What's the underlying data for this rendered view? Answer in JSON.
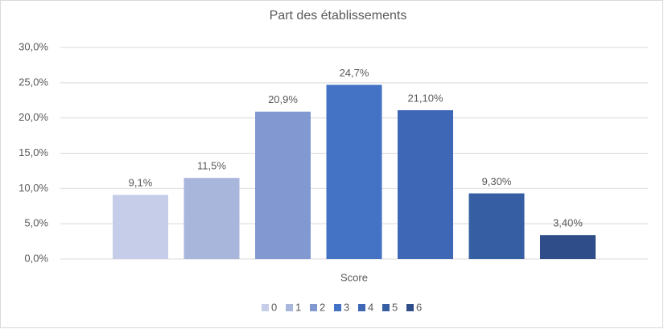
{
  "chart_data": {
    "type": "bar",
    "title": "Part des établissements",
    "categories": [
      "Score"
    ],
    "series": [
      {
        "name": "0",
        "color": "#c5cde8",
        "values": [
          9.1
        ],
        "value_labels": [
          "9,1%"
        ]
      },
      {
        "name": "1",
        "color": "#a8b6dc",
        "values": [
          11.5
        ],
        "value_labels": [
          "11,5%"
        ]
      },
      {
        "name": "2",
        "color": "#8199d0",
        "values": [
          20.9
        ],
        "value_labels": [
          "20,9%"
        ]
      },
      {
        "name": "3",
        "color": "#4472c4",
        "values": [
          24.7
        ],
        "value_labels": [
          "24,7%"
        ]
      },
      {
        "name": "4",
        "color": "#3e68b5",
        "values": [
          21.1
        ],
        "value_labels": [
          "21,10%"
        ]
      },
      {
        "name": "5",
        "color": "#365ea2",
        "values": [
          9.3
        ],
        "value_labels": [
          "9,30%"
        ]
      },
      {
        "name": "6",
        "color": "#2f4e89",
        "values": [
          3.4
        ],
        "value_labels": [
          "3,40%"
        ]
      }
    ],
    "ylim": [
      0,
      30
    ],
    "yticks": [
      {
        "value": 0,
        "label": "0,0%"
      },
      {
        "value": 5,
        "label": "5,0%"
      },
      {
        "value": 10,
        "label": "10,0%"
      },
      {
        "value": 15,
        "label": "15,0%"
      },
      {
        "value": 20,
        "label": "20,0%"
      },
      {
        "value": 25,
        "label": "25,0%"
      },
      {
        "value": 30,
        "label": "30,0%"
      }
    ],
    "grid": true,
    "legend": "bottom"
  }
}
